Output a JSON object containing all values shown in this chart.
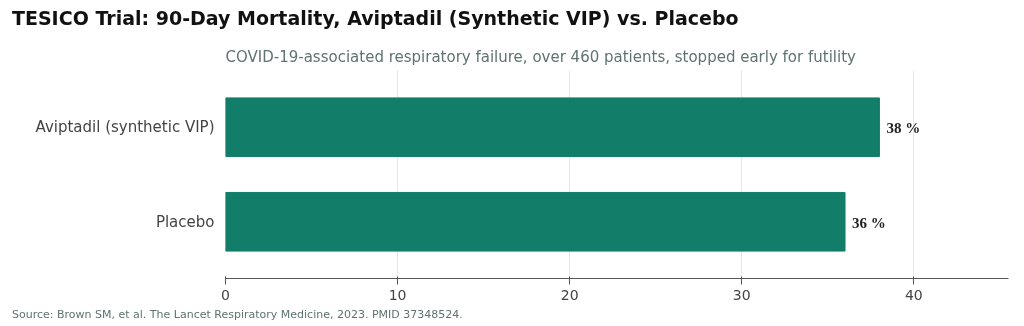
{
  "chart_data": {
    "type": "bar",
    "orientation": "horizontal",
    "title": "TESICO Trial: 90-Day Mortality, Aviptadil (Synthetic VIP) vs. Placebo",
    "subtitle": "COVID-19-associated respiratory failure, over 460 patients, stopped early for futility",
    "categories": [
      "Aviptadil (synthetic VIP)",
      "Placebo"
    ],
    "values": [
      38,
      36
    ],
    "value_labels": [
      "38 %",
      "36 %"
    ],
    "color": "#127e69",
    "xlim": [
      0,
      45.5
    ],
    "xticks": [
      0,
      10,
      20,
      30,
      40
    ],
    "grid": "x",
    "annotations": [
      "Source: Brown SM, et al. The Lancet Respiratory Medicine, 2023. PMID 37348524."
    ]
  }
}
